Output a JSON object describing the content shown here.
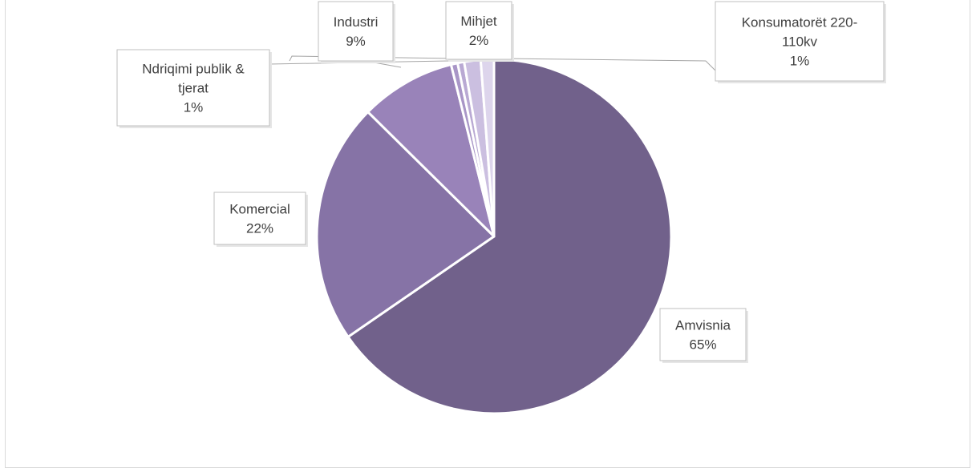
{
  "chart_data": {
    "type": "pie",
    "title": "",
    "series": [
      {
        "values": [
          65,
          22,
          9,
          1,
          1,
          2,
          1
        ]
      }
    ],
    "slices": [
      {
        "key": "amvisnia",
        "lines": [
          "Amvisnia",
          "65%"
        ],
        "value": 65.4,
        "color": "#71618b"
      },
      {
        "key": "komercial",
        "lines": [
          "Komercial",
          "22%"
        ],
        "value": 22.0,
        "color": "#8673a6"
      },
      {
        "key": "industri",
        "lines": [
          "Industri",
          "9%"
        ],
        "value": 8.7,
        "color": "#9983b9"
      },
      {
        "key": "ndriqimi",
        "lines": [
          "Ndriqimi publik &",
          "tjerat",
          "1%"
        ],
        "value": 0.6,
        "color": "#a996c7"
      },
      {
        "key": "other",
        "lines": [],
        "value": 0.6,
        "color": "#b9a9d3"
      },
      {
        "key": "mihjet",
        "lines": [
          "Mihjet",
          "2%"
        ],
        "value": 1.5,
        "color": "#cbbfe0"
      },
      {
        "key": "konsumatoret",
        "lines": [
          "Konsumatorët  220-",
          "110kv",
          "1%"
        ],
        "value": 1.2,
        "color": "#ddd5ec"
      }
    ],
    "start_angle": "12 o'clock",
    "direction": "clockwise",
    "legend": "none"
  }
}
